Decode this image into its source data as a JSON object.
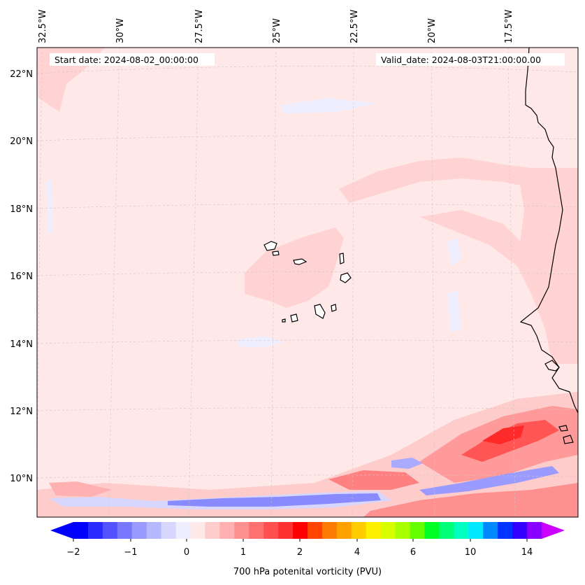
{
  "map": {
    "projection_hint": "lambert-conformal",
    "lon_labels": [
      {
        "lon": -32.5,
        "text": "32.5°W"
      },
      {
        "lon": -30.0,
        "text": "30°W"
      },
      {
        "lon": -27.5,
        "text": "27.5°W"
      },
      {
        "lon": -25.0,
        "text": "25°W"
      },
      {
        "lon": -22.5,
        "text": "22.5°W"
      },
      {
        "lon": -20.0,
        "text": "20°W"
      },
      {
        "lon": -17.5,
        "text": "17.5°W"
      }
    ],
    "lat_labels": [
      {
        "lat": 22,
        "text": "22°N"
      },
      {
        "lat": 20,
        "text": "20°N"
      },
      {
        "lat": 18,
        "text": "18°N"
      },
      {
        "lat": 16,
        "text": "16°N"
      },
      {
        "lat": 14,
        "text": "14°N"
      },
      {
        "lat": 12,
        "text": "12°N"
      },
      {
        "lat": 10,
        "text": "10°N"
      }
    ],
    "start_date": "Start date: 2024-08-02_00:00:00",
    "valid_date": "Valid_date: 2024-08-03T21:00:00.00",
    "background_field_color": "#ffe8e8",
    "coastline_color": "#000000",
    "gridline_color": "#c8c8c8"
  },
  "colorbar": {
    "label": "700 hPa potenital vorticity (PVU)",
    "colors": [
      "#0000ff",
      "#2a2aff",
      "#5252ff",
      "#7878ff",
      "#9a9aff",
      "#b8b8ff",
      "#d6d6ff",
      "#eeeeff",
      "#ffe8e8",
      "#ffcccc",
      "#ffb0b0",
      "#ff9090",
      "#ff7070",
      "#ff5050",
      "#ff3030",
      "#ff0000",
      "#ff4400",
      "#ff7a00",
      "#ffa200",
      "#ffcc00",
      "#fff000",
      "#d8ff00",
      "#a8ff00",
      "#66ff00",
      "#00ff22",
      "#00ff77",
      "#00ffc0",
      "#00e8ff",
      "#0088ff",
      "#0033ff",
      "#3300ff",
      "#8800ff"
    ],
    "under_color": "#0000ff",
    "over_color": "#cc00ff",
    "ticks": [
      {
        "value": -2,
        "text": "−2"
      },
      {
        "value": -1,
        "text": "−1"
      },
      {
        "value": 0,
        "text": "0"
      },
      {
        "value": 1,
        "text": "1"
      },
      {
        "value": 2,
        "text": "2"
      },
      {
        "value": 4,
        "text": "4"
      },
      {
        "value": 6,
        "text": "6"
      },
      {
        "value": 10,
        "text": "10"
      },
      {
        "value": 14,
        "text": "14"
      }
    ]
  }
}
